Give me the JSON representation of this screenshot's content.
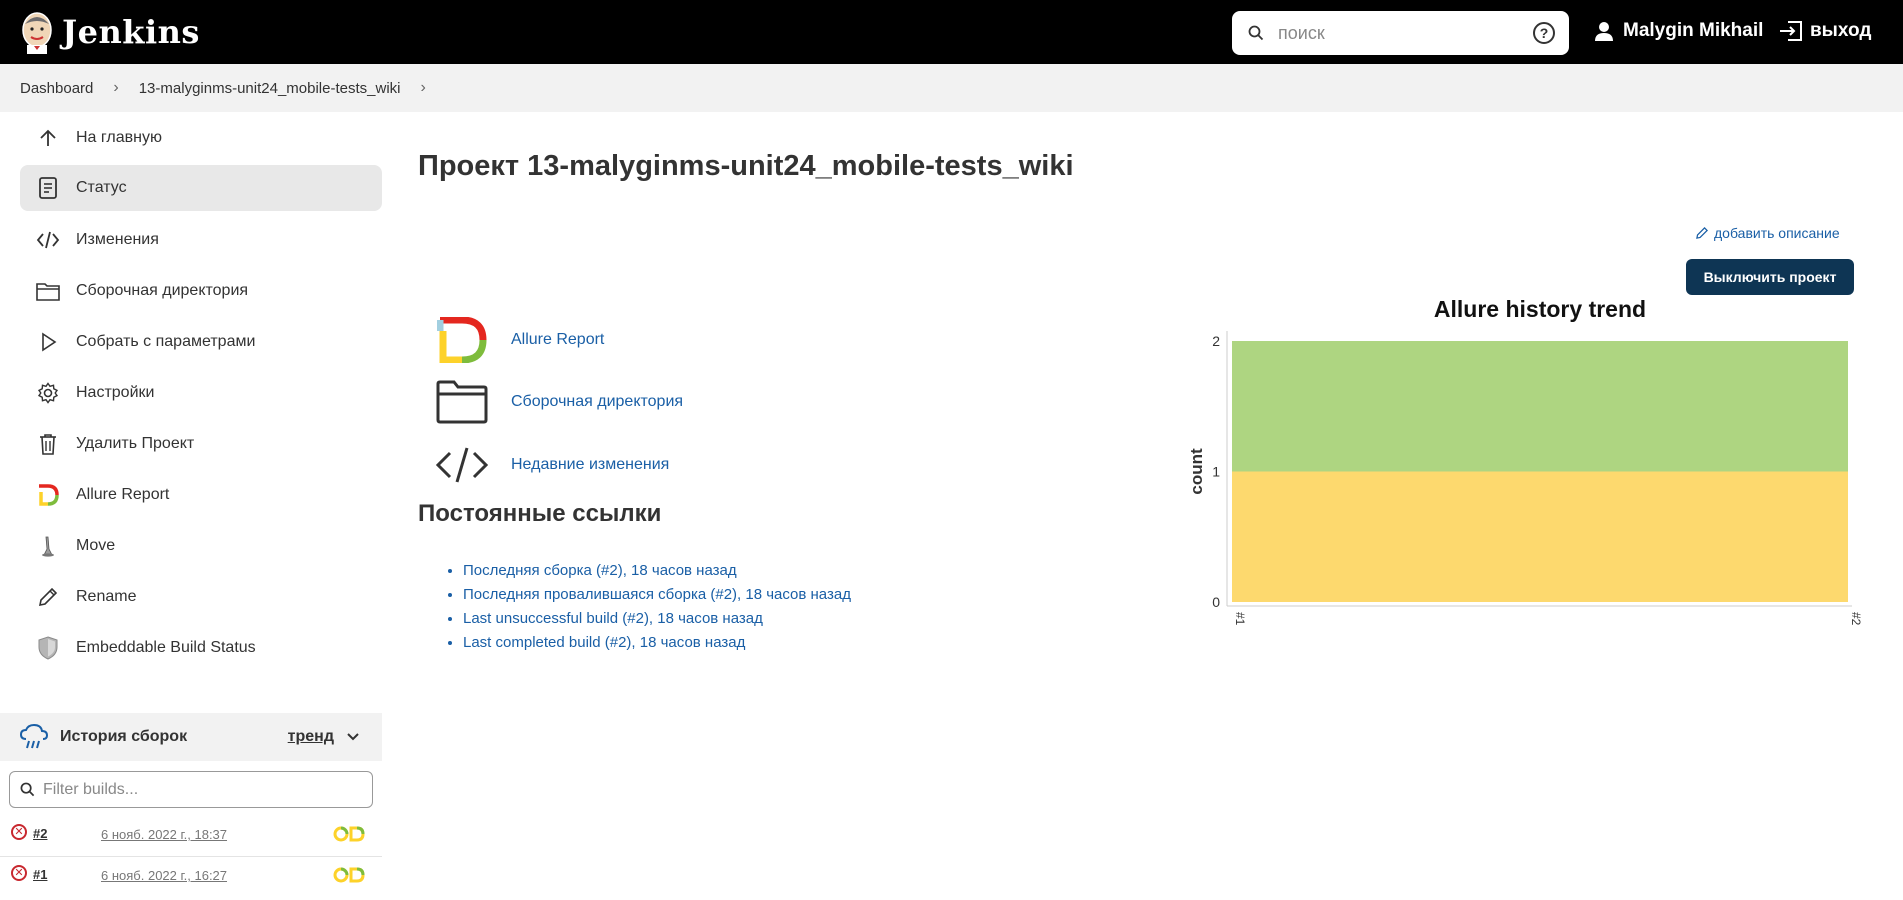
{
  "header": {
    "brand": "Jenkins",
    "search_placeholder": "поиск",
    "help_label": "?",
    "user_name": "Malygin Mikhail",
    "logout_label": "выход"
  },
  "breadcrumb": [
    "Dashboard",
    "13-malyginms-unit24_mobile-tests_wiki"
  ],
  "sidebar": {
    "items": [
      {
        "label": "На главную",
        "icon": "arrow-up-icon"
      },
      {
        "label": "Статус",
        "icon": "document-icon"
      },
      {
        "label": "Изменения",
        "icon": "code-icon"
      },
      {
        "label": "Сборочная директория",
        "icon": "folder-icon"
      },
      {
        "label": "Собрать с параметрами",
        "icon": "play-icon"
      },
      {
        "label": "Настройки",
        "icon": "gear-icon"
      },
      {
        "label": "Удалить Проект",
        "icon": "trash-icon"
      },
      {
        "label": "Allure Report",
        "icon": "allure-icon"
      },
      {
        "label": "Move",
        "icon": "move-icon"
      },
      {
        "label": "Rename",
        "icon": "pencil-icon"
      },
      {
        "label": "Embeddable Build Status",
        "icon": "shield-icon"
      }
    ]
  },
  "history": {
    "title": "История сборок",
    "trend_label": "тренд",
    "filter_placeholder": "Filter builds...",
    "builds": [
      {
        "number": "#2",
        "date": "6 нояб. 2022 г., 18:37"
      },
      {
        "number": "#1",
        "date": "6 нояб. 2022 г., 16:27"
      }
    ]
  },
  "main": {
    "title": "Проект 13-malyginms-unit24_mobile-tests_wiki",
    "add_description": "добавить описание",
    "disable_button": "Выключить проект",
    "links": [
      {
        "label": "Allure Report",
        "icon": "allure-icon"
      },
      {
        "label": "Сборочная директория",
        "icon": "folder-icon"
      },
      {
        "label": "Недавние изменения",
        "icon": "code-icon"
      }
    ],
    "permalinks_title": "Постоянные ссылки",
    "permalinks": [
      "Последняя сборка (#2), 18 часов назад",
      "Последняя провалившаяся сборка (#2), 18 часов назад",
      "Last unsuccessful build (#2), 18 часов назад",
      "Last completed build (#2), 18 часов назад"
    ]
  },
  "chart_data": {
    "type": "area",
    "title": "Allure history trend",
    "ylabel": "count",
    "xlabel": "",
    "x": [
      "#1",
      "#2"
    ],
    "ylim": [
      0,
      2
    ],
    "yticks": [
      "0",
      "1",
      "2"
    ],
    "series": [
      {
        "values": [
          1,
          1
        ],
        "color": "#fdd96e"
      },
      {
        "values": [
          1,
          1
        ],
        "color": "#aed581"
      }
    ]
  }
}
